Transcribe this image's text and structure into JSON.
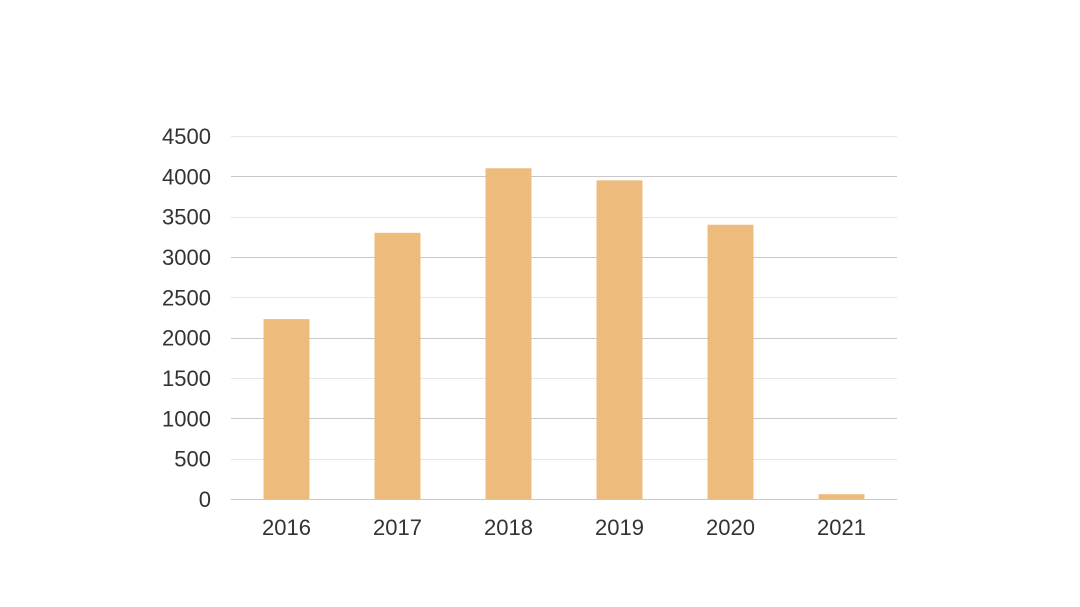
{
  "chart_data": {
    "type": "bar",
    "categories": [
      "2016",
      "2017",
      "2018",
      "2019",
      "2020",
      "2021"
    ],
    "values": [
      2230,
      3300,
      4100,
      3950,
      3400,
      60
    ],
    "title": "",
    "xlabel": "",
    "ylabel": "",
    "ylim": [
      0,
      4500
    ],
    "yticks": [
      "0",
      "500",
      "1000",
      "1500",
      "2000",
      "2500",
      "3000",
      "3500",
      "4000",
      "4500"
    ],
    "grid": true,
    "bar_color": "#EDBC7D",
    "grid_color": "#c8c8c8"
  }
}
